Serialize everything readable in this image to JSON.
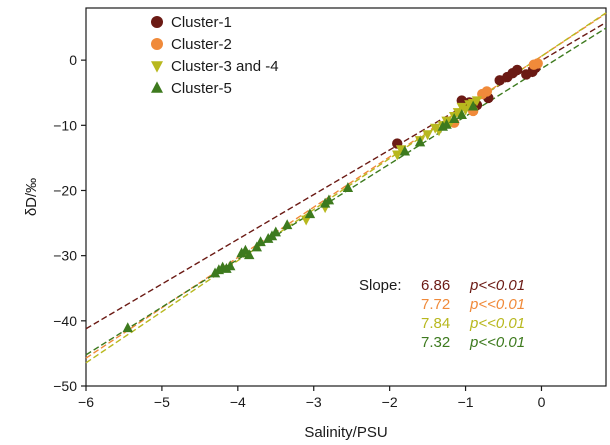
{
  "chart_data": {
    "type": "scatter",
    "xlabel": "Salinity/PSU",
    "ylabel": "δD/‰",
    "xlim": [
      -6,
      0.85
    ],
    "ylim": [
      -50,
      8
    ],
    "xticks": [
      -6,
      -5,
      -4,
      -3,
      -2,
      -1,
      0
    ],
    "yticks": [
      -50,
      -40,
      -30,
      -20,
      -10,
      0
    ],
    "xtick_labels": [
      "−6",
      "−5",
      "−4",
      "−3",
      "−2",
      "−1",
      "0"
    ],
    "ytick_labels": [
      "−50",
      "−40",
      "−30",
      "−20",
      "−10",
      "0"
    ],
    "grid": false,
    "legend_position": "top-left",
    "series": [
      {
        "name": "Cluster-1",
        "marker": "circle",
        "color": "#6b1a14",
        "points": [
          [
            -1.9,
            -12.8
          ],
          [
            -1.05,
            -6.2
          ],
          [
            -0.95,
            -6.5
          ],
          [
            -0.85,
            -6.9
          ],
          [
            -0.7,
            -5.8
          ],
          [
            -0.55,
            -3.1
          ],
          [
            -0.45,
            -2.6
          ],
          [
            -0.38,
            -2.0
          ],
          [
            -0.32,
            -1.5
          ],
          [
            -0.2,
            -2.2
          ],
          [
            -0.12,
            -1.8
          ],
          [
            -0.08,
            -1.2
          ]
        ],
        "fit": {
          "slope": 6.86,
          "x_range": [
            -6,
            0.85
          ],
          "y_at_0": -0.05
        }
      },
      {
        "name": "Cluster-2",
        "marker": "circle",
        "color": "#f08a3a",
        "points": [
          [
            -1.15,
            -9.6
          ],
          [
            -0.9,
            -7.8
          ],
          [
            -0.78,
            -5.2
          ],
          [
            -0.72,
            -4.8
          ],
          [
            -0.1,
            -0.7
          ],
          [
            -0.05,
            -0.5
          ]
        ],
        "fit": {
          "slope": 7.72,
          "x_range": [
            -6,
            0.85
          ],
          "y_at_0": 0.6
        }
      },
      {
        "name": "Cluster-3 and -4",
        "marker": "triangle-down",
        "color": "#b8b81e",
        "points": [
          [
            -1.9,
            -14.5
          ],
          [
            -1.85,
            -13.7
          ],
          [
            -1.6,
            -12.3
          ],
          [
            -1.5,
            -11.4
          ],
          [
            -1.4,
            -10.4
          ],
          [
            -1.3,
            -10.0
          ],
          [
            -1.25,
            -9.3
          ],
          [
            -1.15,
            -8.6
          ],
          [
            -1.1,
            -8.0
          ],
          [
            -1.05,
            -7.2
          ],
          [
            -1.0,
            -7.6
          ],
          [
            -0.95,
            -6.8
          ],
          [
            -0.9,
            -6.6
          ],
          [
            -0.85,
            -6.2
          ],
          [
            -3.1,
            -24.5
          ],
          [
            -2.85,
            -22.6
          ],
          [
            -1.2,
            -9.6
          ],
          [
            -1.35,
            -10.8
          ]
        ],
        "fit": {
          "slope": 7.84,
          "x_range": [
            -6,
            0.85
          ],
          "y_at_0": 0.6
        }
      },
      {
        "name": "Cluster-5",
        "marker": "triangle-up",
        "color": "#3d7a1e",
        "points": [
          [
            -5.45,
            -41.1
          ],
          [
            -4.3,
            -32.7
          ],
          [
            -4.25,
            -32.2
          ],
          [
            -4.2,
            -31.8
          ],
          [
            -4.15,
            -32.0
          ],
          [
            -4.1,
            -31.6
          ],
          [
            -3.95,
            -29.6
          ],
          [
            -3.9,
            -29.2
          ],
          [
            -3.85,
            -29.9
          ],
          [
            -3.75,
            -28.7
          ],
          [
            -3.7,
            -27.9
          ],
          [
            -3.6,
            -27.4
          ],
          [
            -3.55,
            -27.0
          ],
          [
            -3.5,
            -26.4
          ],
          [
            -3.35,
            -25.3
          ],
          [
            -3.05,
            -23.6
          ],
          [
            -2.85,
            -22.0
          ],
          [
            -2.8,
            -21.5
          ],
          [
            -2.55,
            -19.6
          ],
          [
            -1.8,
            -14.0
          ],
          [
            -1.6,
            -12.6
          ],
          [
            -1.3,
            -10.2
          ],
          [
            -1.25,
            -9.9
          ],
          [
            -1.15,
            -9.0
          ],
          [
            -1.05,
            -8.4
          ],
          [
            -0.9,
            -7.1
          ]
        ],
        "fit": {
          "slope": 7.32,
          "x_range": [
            -6,
            0.85
          ],
          "y_at_0": -1.3
        }
      }
    ],
    "slope_label": "Slope:",
    "slope_annotations": [
      {
        "value": "6.86",
        "p": "p<<0.01",
        "color": "#6b1a14"
      },
      {
        "value": "7.72",
        "p": "p<<0.01",
        "color": "#f08a3a"
      },
      {
        "value": "7.84",
        "p": "p<<0.01",
        "color": "#b8b81e"
      },
      {
        "value": "7.32",
        "p": "p<<0.01",
        "color": "#3d7a1e"
      }
    ]
  }
}
